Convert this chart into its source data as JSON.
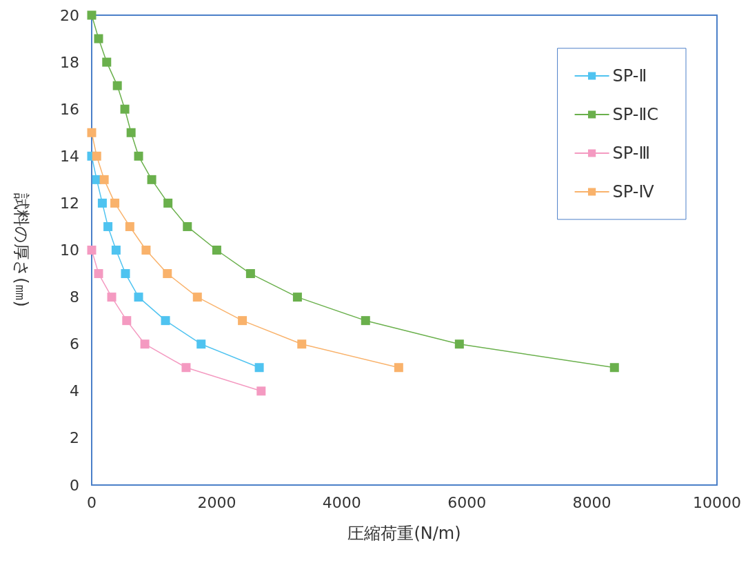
{
  "chart_data": {
    "type": "line",
    "xlabel": "圧縮荷重(N/m)",
    "ylabel": "試料の厚さ(㎜)",
    "xlim": [
      0,
      10000
    ],
    "xticks": [
      0,
      2000,
      4000,
      6000,
      8000,
      10000
    ],
    "ylim": [
      0,
      20
    ],
    "yticks": [
      0,
      2,
      4,
      6,
      8,
      10,
      12,
      14,
      16,
      18,
      20
    ],
    "grid": false,
    "legend": "top right",
    "marker": "square",
    "line_style": "solid",
    "series": [
      {
        "name": "SP-Ⅱ",
        "color": "#4fc3f0",
        "x": [
          0,
          80,
          170,
          260,
          390,
          540,
          750,
          1180,
          1750,
          2680
        ],
        "values": [
          14,
          13,
          12,
          11,
          10,
          9,
          8,
          7,
          6,
          5
        ]
      },
      {
        "name": "SP-ⅡC",
        "color": "#6ab04c",
        "x": [
          0,
          110,
          240,
          410,
          530,
          630,
          750,
          960,
          1220,
          1530,
          2000,
          2540,
          3290,
          4380,
          5880,
          8360
        ],
        "values": [
          20,
          19,
          18,
          17,
          16,
          15,
          14,
          13,
          12,
          11,
          10,
          9,
          8,
          7,
          6,
          5
        ]
      },
      {
        "name": "SP-Ⅲ",
        "color": "#f49ac1",
        "x": [
          0,
          110,
          320,
          560,
          850,
          1510,
          2710
        ],
        "values": [
          10,
          9,
          8,
          7,
          6,
          5,
          4
        ]
      },
      {
        "name": "SP-Ⅳ",
        "color": "#f9b26b",
        "x": [
          0,
          80,
          200,
          370,
          610,
          870,
          1210,
          1690,
          2410,
          3360,
          4910
        ],
        "values": [
          15,
          14,
          13,
          12,
          11,
          10,
          9,
          8,
          7,
          6,
          5
        ]
      }
    ]
  }
}
